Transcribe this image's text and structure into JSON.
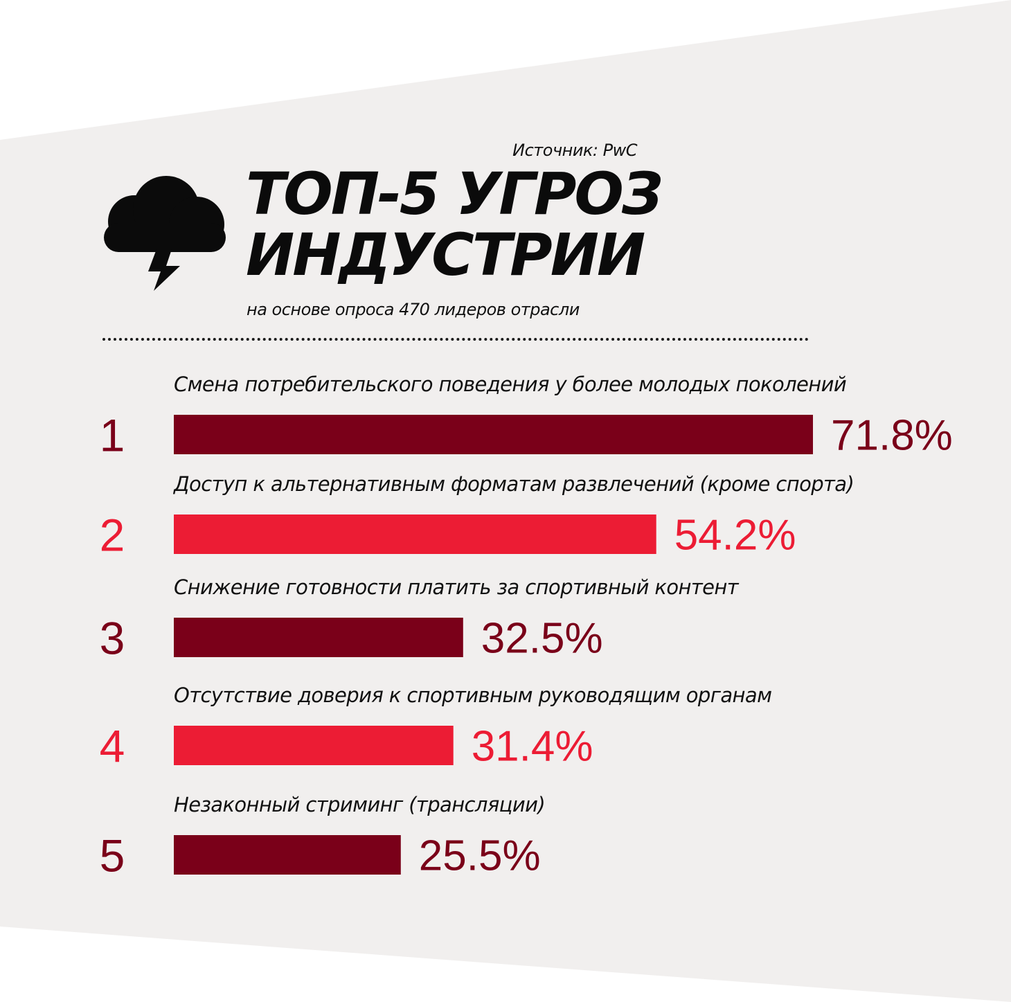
{
  "source": "Источник: PwC",
  "title_line1": "ТОП-5 УГРОЗ",
  "title_line2": "ИНДУСТРИИ",
  "subtitle": "на основе опроса 470 лидеров отрасли",
  "icons": {
    "header": "thunderstorm-cloud-icon"
  },
  "colors": {
    "dark": "#7a0019",
    "bright": "#ec1c34",
    "panel": "#f1efee"
  },
  "chart_data": {
    "type": "bar",
    "orientation": "horizontal",
    "ranks": [
      "1",
      "2",
      "3",
      "4",
      "5"
    ],
    "categories": [
      "Смена потребительского поведения у более молодых поколений",
      "Доступ к альтернативным форматам развлечений (кроме спорта)",
      "Снижение готовности платить за спортивный контент",
      "Отсутствие доверия к спортивным руководящим органам",
      "Незаконный стриминг (трансляции)"
    ],
    "values": [
      71.8,
      54.2,
      32.5,
      31.4,
      25.5
    ],
    "value_labels": [
      "71.8%",
      "54.2%",
      "32.5%",
      "31.4%",
      "25.5%"
    ],
    "bar_colors": [
      "#7a0019",
      "#ec1c34",
      "#7a0019",
      "#ec1c34",
      "#7a0019"
    ],
    "xlim": [
      0,
      100
    ],
    "grid": false,
    "legend": "none"
  }
}
